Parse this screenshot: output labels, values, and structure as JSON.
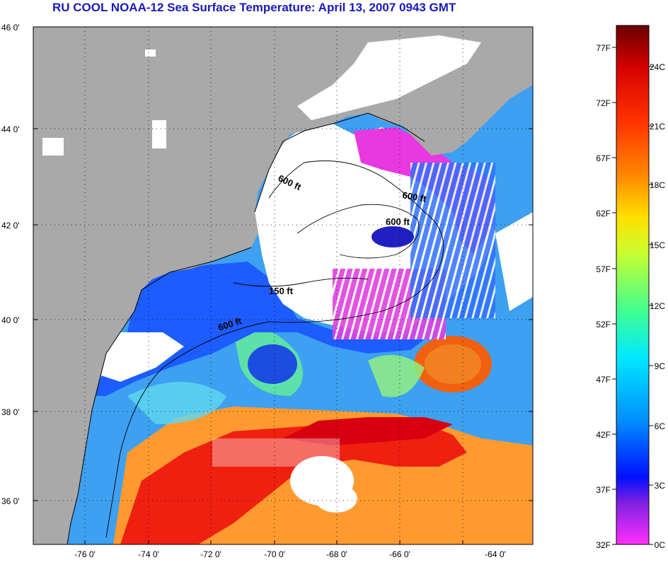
{
  "title": "RU COOL  NOAA-12  Sea Surface Temperature:  April 13, 2007 0943 GMT",
  "latitude_labels": [
    "46 0'",
    "44 0'",
    "42 0'",
    "40 0'",
    "38 0'",
    "36 0'"
  ],
  "longitude_labels": [
    "-76 0'",
    "-74 0'",
    "-72 0'",
    "-70 0'",
    "-68 0'",
    "-66 0'",
    "-64 0'"
  ],
  "contour_labels": [
    "600 ft",
    "600 ft",
    "600 ft",
    "150 ft",
    "600 ft"
  ],
  "colorbar": {
    "fahrenheit_labels": [
      "77F",
      "72F",
      "67F",
      "62F",
      "57F",
      "52F",
      "47F",
      "42F",
      "37F",
      "32F"
    ],
    "celsius_labels": [
      "24C",
      "21C",
      "18C",
      "15C",
      "12C",
      "9C",
      "6C",
      "3C",
      "0C"
    ],
    "colors": [
      "#7a0000",
      "#d40000",
      "#ff3000",
      "#ff8000",
      "#ffd000",
      "#c8ff30",
      "#40ff90",
      "#00e8ff",
      "#0090ff",
      "#0020ff",
      "#6030e0",
      "#ff30ff"
    ]
  },
  "colors": {
    "land": "#a9a9a9",
    "cloud": "#ffffff",
    "title": "#1a1ab8"
  }
}
